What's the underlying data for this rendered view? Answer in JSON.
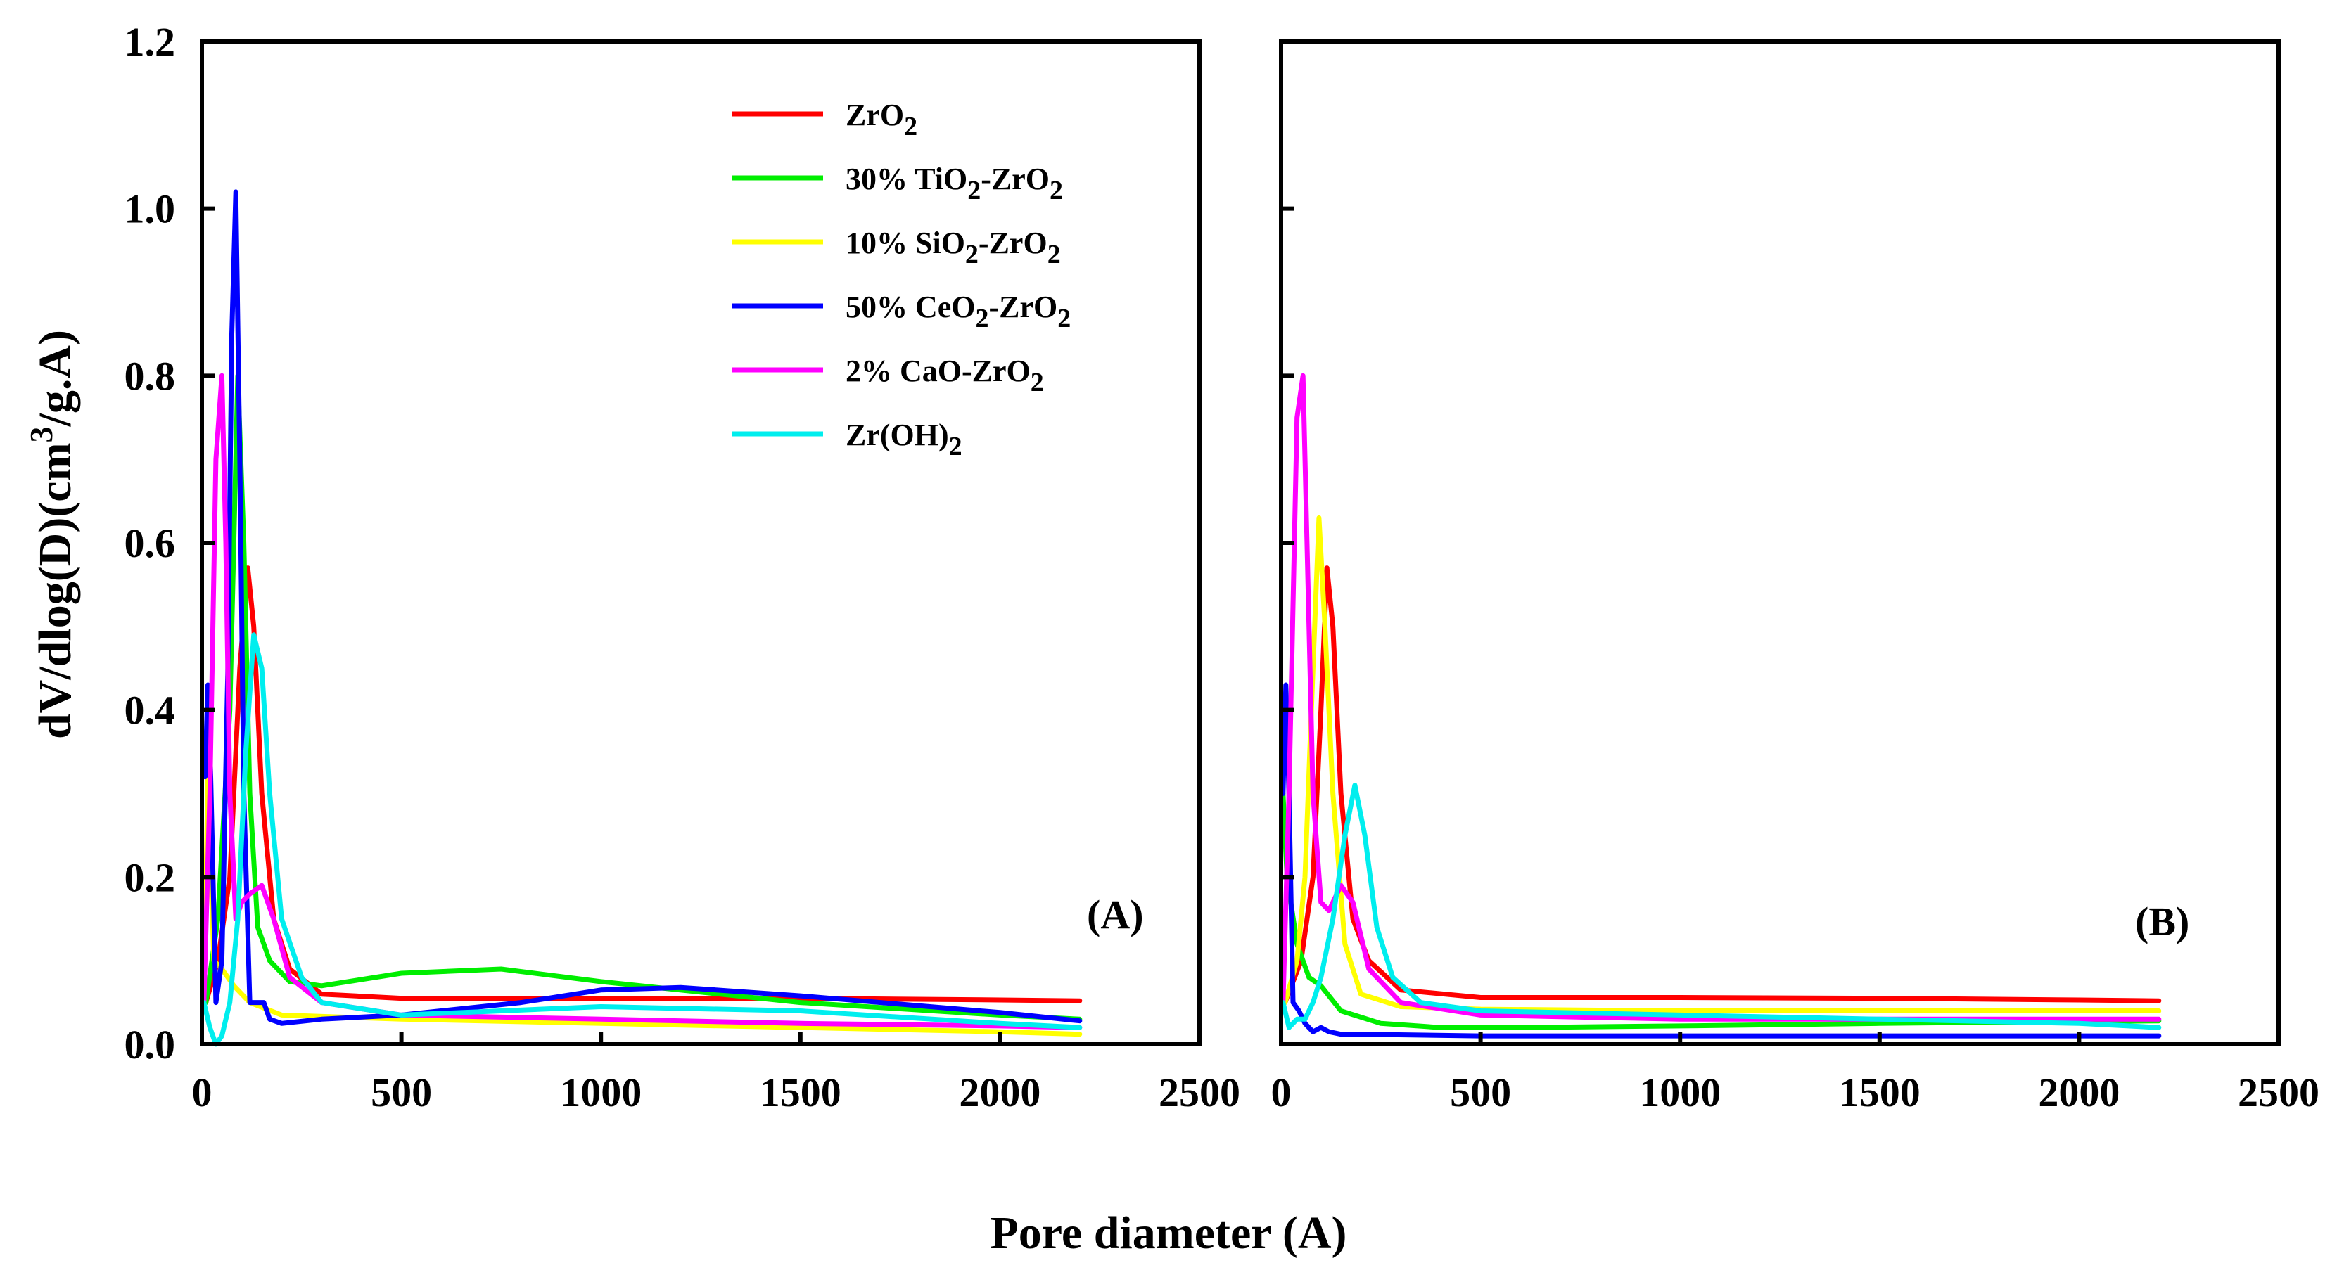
{
  "chart_data": [
    {
      "type": "line",
      "panel_label": "(A)",
      "xlabel": "Pore diameter (A)",
      "ylabel": "dV/dlog(D)(cm3/g.A)",
      "ylabel_parts": {
        "main": "dV/dlog(D)(cm",
        "sup": "3",
        "tail": "/g.A)"
      },
      "xlim": [
        0,
        2500
      ],
      "ylim": [
        0,
        1.2
      ],
      "xticks": [
        "0",
        "500",
        "1000",
        "1500",
        "2000",
        "2500"
      ],
      "yticks": [
        "0.0",
        "0.2",
        "0.4",
        "0.6",
        "0.8",
        "1.0",
        "1.2"
      ],
      "legend_position": "top-right",
      "legend": [
        {
          "prefix": "ZrO",
          "sub": "2",
          "suffix": ""
        },
        {
          "prefix": "30% TiO",
          "sub": "2",
          "suffix": "-ZrO",
          "sub2": "2"
        },
        {
          "prefix": "10% SiO",
          "sub": "2",
          "suffix": "-ZrO",
          "sub2": "2"
        },
        {
          "prefix": "50% CeO",
          "sub": "2",
          "suffix": "-ZrO",
          "sub2": "2"
        },
        {
          "prefix": "2% CaO-ZrO",
          "sub": "2",
          "suffix": ""
        },
        {
          "prefix": "Zr(OH)",
          "sub": "2",
          "suffix": ""
        }
      ],
      "series": [
        {
          "name": "ZrO2",
          "color": "#ff0000",
          "x": [
            10,
            40,
            70,
            95,
            115,
            130,
            150,
            180,
            220,
            300,
            500,
            1000,
            1500,
            2000,
            2200
          ],
          "y": [
            0.05,
            0.1,
            0.2,
            0.45,
            0.57,
            0.5,
            0.3,
            0.15,
            0.09,
            0.06,
            0.055,
            0.055,
            0.055,
            0.053,
            0.052
          ]
        },
        {
          "name": "30% TiO2-ZrO2",
          "color": "#00ee00",
          "x": [
            10,
            40,
            70,
            90,
            105,
            120,
            140,
            170,
            220,
            300,
            500,
            750,
            1000,
            1500,
            2000,
            2200
          ],
          "y": [
            0.05,
            0.15,
            0.4,
            0.8,
            0.6,
            0.3,
            0.14,
            0.1,
            0.075,
            0.07,
            0.085,
            0.09,
            0.075,
            0.05,
            0.035,
            0.03
          ]
        },
        {
          "name": "10% SiO2-ZrO2",
          "color": "#ffff00",
          "x": [
            5,
            15,
            30,
            50,
            80,
            120,
            200,
            500,
            1000,
            1500,
            2000,
            2200
          ],
          "y": [
            0.05,
            0.32,
            0.1,
            0.09,
            0.07,
            0.05,
            0.035,
            0.03,
            0.025,
            0.02,
            0.015,
            0.012
          ]
        },
        {
          "name": "50% CeO2-ZrO2",
          "color": "#0000ff",
          "x": [
            8,
            15,
            22,
            35,
            50,
            65,
            75,
            85,
            95,
            105,
            120,
            140,
            155,
            170,
            200,
            300,
            500,
            800,
            1000,
            1200,
            1500,
            2000,
            2200
          ],
          "y": [
            0.32,
            0.43,
            0.32,
            0.05,
            0.1,
            0.45,
            0.85,
            1.02,
            0.7,
            0.3,
            0.05,
            0.05,
            0.05,
            0.03,
            0.025,
            0.03,
            0.035,
            0.05,
            0.065,
            0.068,
            0.058,
            0.038,
            0.028
          ]
        },
        {
          "name": "2% CaO-ZrO2",
          "color": "#ff00ff",
          "x": [
            5,
            20,
            35,
            50,
            60,
            70,
            85,
            100,
            120,
            150,
            180,
            220,
            300,
            500,
            1000,
            1500,
            2000,
            2200
          ],
          "y": [
            0.05,
            0.3,
            0.7,
            0.8,
            0.6,
            0.3,
            0.15,
            0.17,
            0.18,
            0.19,
            0.15,
            0.08,
            0.05,
            0.035,
            0.03,
            0.025,
            0.022,
            0.02
          ]
        },
        {
          "name": "Zr(OH)2",
          "color": "#00eeee",
          "x": [
            5,
            20,
            35,
            50,
            70,
            90,
            110,
            130,
            150,
            170,
            200,
            250,
            300,
            500,
            1000,
            1500,
            2000,
            2200
          ],
          "y": [
            0.05,
            0.02,
            0.0,
            0.01,
            0.05,
            0.15,
            0.35,
            0.49,
            0.45,
            0.3,
            0.15,
            0.08,
            0.05,
            0.035,
            0.045,
            0.04,
            0.025,
            0.02
          ]
        }
      ]
    },
    {
      "type": "line",
      "panel_label": "(B)",
      "xlim": [
        0,
        2500
      ],
      "ylim": [
        0,
        1.2
      ],
      "xticks": [
        "0",
        "500",
        "1000",
        "1500",
        "2000",
        "2500"
      ],
      "series": [
        {
          "name": "ZrO2",
          "color": "#ff0000",
          "x": [
            10,
            50,
            80,
            100,
            115,
            130,
            150,
            180,
            220,
            300,
            500,
            1000,
            1500,
            2000,
            2200
          ],
          "y": [
            0.05,
            0.1,
            0.2,
            0.4,
            0.57,
            0.5,
            0.3,
            0.15,
            0.1,
            0.065,
            0.056,
            0.056,
            0.055,
            0.053,
            0.052
          ]
        },
        {
          "name": "30% TiO2-ZrO2",
          "color": "#00ee00",
          "x": [
            5,
            15,
            40,
            70,
            100,
            150,
            250,
            400,
            600,
            1000,
            1500,
            2200
          ],
          "y": [
            0.3,
            0.2,
            0.12,
            0.08,
            0.07,
            0.04,
            0.025,
            0.02,
            0.02,
            0.022,
            0.025,
            0.028
          ]
        },
        {
          "name": "10% SiO2-ZrO2",
          "color": "#ffff00",
          "x": [
            10,
            40,
            60,
            80,
            95,
            110,
            130,
            160,
            200,
            300,
            500,
            1000,
            1500,
            2000,
            2200
          ],
          "y": [
            0.05,
            0.1,
            0.2,
            0.45,
            0.63,
            0.5,
            0.3,
            0.12,
            0.06,
            0.045,
            0.042,
            0.04,
            0.04,
            0.04,
            0.04
          ]
        },
        {
          "name": "50% CeO2-ZrO2",
          "color": "#0000ff",
          "x": [
            5,
            12,
            20,
            30,
            45,
            60,
            80,
            100,
            120,
            150,
            200,
            500,
            1000,
            1500,
            2000,
            2200
          ],
          "y": [
            0.3,
            0.43,
            0.3,
            0.05,
            0.04,
            0.025,
            0.015,
            0.02,
            0.015,
            0.012,
            0.012,
            0.01,
            0.01,
            0.01,
            0.01,
            0.01
          ]
        },
        {
          "name": "2% CaO-ZrO2",
          "color": "#ff00ff",
          "x": [
            5,
            20,
            40,
            55,
            65,
            80,
            100,
            120,
            150,
            180,
            220,
            300,
            500,
            1000,
            1500,
            2000,
            2200
          ],
          "y": [
            0.05,
            0.3,
            0.75,
            0.8,
            0.6,
            0.3,
            0.17,
            0.16,
            0.19,
            0.17,
            0.09,
            0.05,
            0.035,
            0.03,
            0.03,
            0.03,
            0.03
          ]
        },
        {
          "name": "Zr(OH)2",
          "color": "#00eeee",
          "x": [
            5,
            20,
            40,
            60,
            80,
            100,
            130,
            160,
            185,
            210,
            240,
            280,
            350,
            500,
            1000,
            1500,
            2000,
            2200
          ],
          "y": [
            0.05,
            0.02,
            0.03,
            0.03,
            0.05,
            0.08,
            0.15,
            0.25,
            0.31,
            0.25,
            0.14,
            0.08,
            0.05,
            0.04,
            0.035,
            0.03,
            0.025,
            0.02
          ]
        }
      ]
    }
  ]
}
